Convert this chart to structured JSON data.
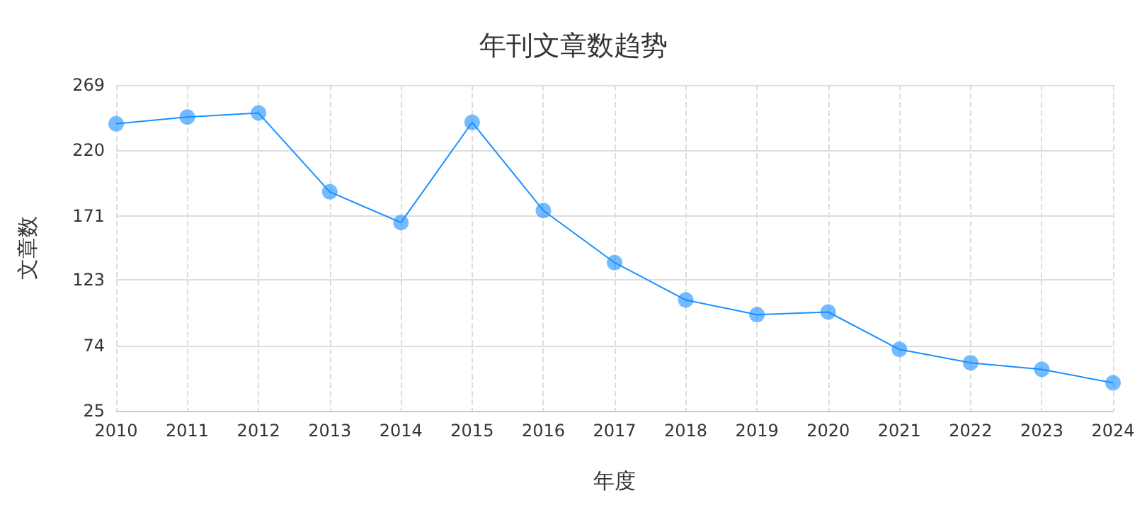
{
  "chart_data": {
    "type": "line",
    "title": "年刊文章数趋势",
    "xlabel": "年度",
    "ylabel": "文章数",
    "categories": [
      "2010",
      "2011",
      "2012",
      "2013",
      "2014",
      "2015",
      "2016",
      "2017",
      "2018",
      "2019",
      "2020",
      "2021",
      "2022",
      "2023",
      "2024"
    ],
    "series": [
      {
        "color": "#1890ff",
        "values": [
          240,
          245,
          248,
          189,
          166,
          241,
          175,
          136,
          108,
          97,
          99,
          71,
          61,
          56,
          46
        ]
      }
    ],
    "ylim": [
      25,
      269
    ],
    "yticks": [
      25,
      74,
      123,
      171,
      220,
      269
    ],
    "grid": true,
    "marker": "circle",
    "line_style": "solid"
  }
}
